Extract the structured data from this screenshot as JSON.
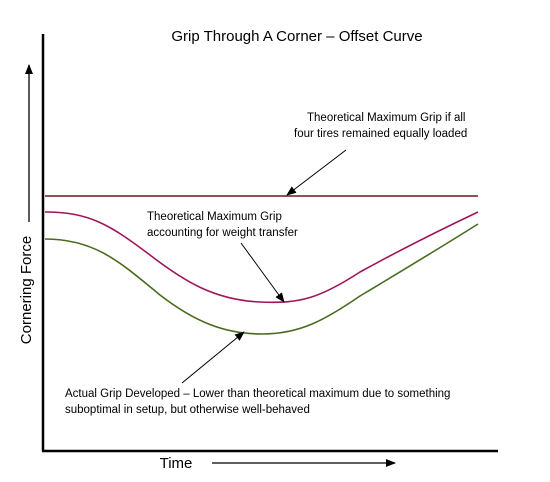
{
  "chart_data": {
    "type": "line",
    "title": "Grip Through A Corner – Offset Curve",
    "xlabel": "Time",
    "ylabel": "Cornering Force",
    "grid": false,
    "legend": "none",
    "series": [
      {
        "color": "#6b1a1a"
      },
      {
        "color": "#a0155a"
      },
      {
        "color": "#4a6b1f"
      }
    ],
    "annotations": [
      {
        "lines": [
          "Theoretical Maximum Grip if all",
          "four tires remained equally loaded"
        ]
      },
      {
        "lines": [
          "Theoretical Maximum Grip",
          "accounting for weight transfer"
        ]
      },
      {
        "lines": [
          "Actual Grip Developed – Lower than theoretical maximum due to something",
          "suboptimal in setup, but otherwise well-behaved"
        ]
      }
    ]
  }
}
